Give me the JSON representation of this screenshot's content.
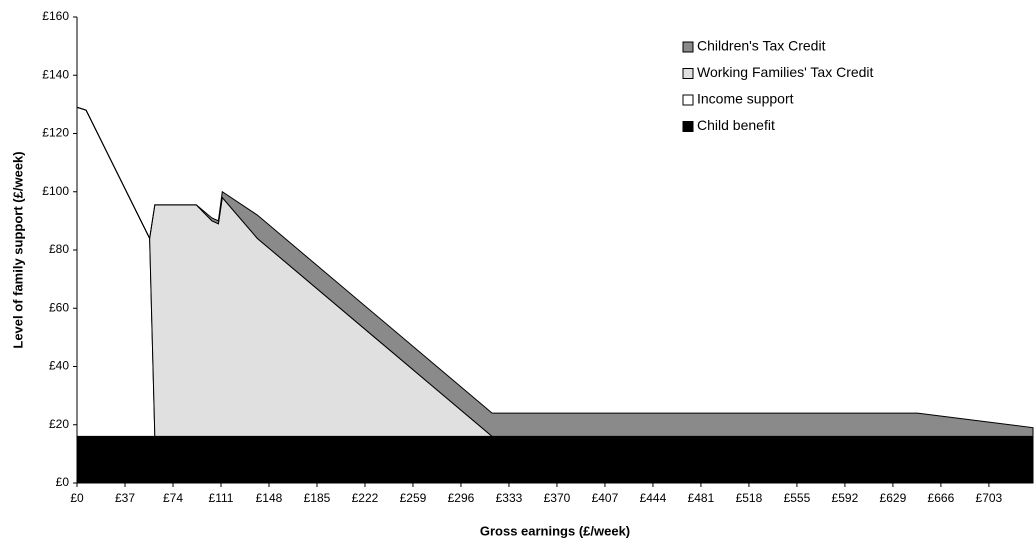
{
  "chart_data": {
    "type": "stacked_area",
    "x_label": "Gross earnings (£/week)",
    "y_label": "Level of family support (£/week)",
    "x": [
      0,
      7,
      56,
      60,
      92,
      104,
      109,
      112,
      139,
      320,
      648,
      737
    ],
    "series": [
      {
        "name": "Child benefit",
        "color": "#000000",
        "values": [
          16,
          16,
          16,
          16,
          16,
          16,
          16,
          16,
          16,
          16,
          16,
          16
        ]
      },
      {
        "name": "Income support",
        "color": "#ffffff",
        "values": [
          113,
          112,
          68,
          0,
          0,
          0,
          0,
          0,
          0,
          0,
          0,
          0
        ]
      },
      {
        "name": "Working Families' Tax Credit",
        "color": "#e0e0e0",
        "values": [
          0,
          0,
          0,
          79.5,
          79.5,
          74,
          73,
          82,
          68,
          0,
          0,
          0
        ]
      },
      {
        "name": "Children's Tax Credit",
        "color": "#8a8a8a",
        "values": [
          0,
          0,
          0,
          0,
          0,
          1,
          1,
          2,
          8,
          8,
          8,
          3
        ]
      }
    ],
    "xlim": [
      0,
      737
    ],
    "xticks": [
      {
        "value": 0,
        "label": "£0"
      },
      {
        "value": 37,
        "label": "£37"
      },
      {
        "value": 74,
        "label": "£74"
      },
      {
        "value": 111,
        "label": "£111"
      },
      {
        "value": 148,
        "label": "£148"
      },
      {
        "value": 185,
        "label": "£185"
      },
      {
        "value": 222,
        "label": "£222"
      },
      {
        "value": 259,
        "label": "£259"
      },
      {
        "value": 296,
        "label": "£296"
      },
      {
        "value": 333,
        "label": "£333"
      },
      {
        "value": 370,
        "label": "£370"
      },
      {
        "value": 407,
        "label": "£407"
      },
      {
        "value": 444,
        "label": "£444"
      },
      {
        "value": 481,
        "label": "£481"
      },
      {
        "value": 518,
        "label": "£518"
      },
      {
        "value": 555,
        "label": "£555"
      },
      {
        "value": 592,
        "label": "£592"
      },
      {
        "value": 629,
        "label": "£629"
      },
      {
        "value": 666,
        "label": "£666"
      },
      {
        "value": 703,
        "label": "£703"
      }
    ],
    "ylim": [
      0,
      160
    ],
    "yticks": [
      {
        "value": 0,
        "label": "£0"
      },
      {
        "value": 20,
        "label": "£20"
      },
      {
        "value": 40,
        "label": "£40"
      },
      {
        "value": 60,
        "label": "£60"
      },
      {
        "value": 80,
        "label": "£80"
      },
      {
        "value": 100,
        "label": "£100"
      },
      {
        "value": 120,
        "label": "£120"
      },
      {
        "value": 140,
        "label": "£140"
      },
      {
        "value": 160,
        "label": "£160"
      }
    ],
    "legend": "top-right"
  }
}
